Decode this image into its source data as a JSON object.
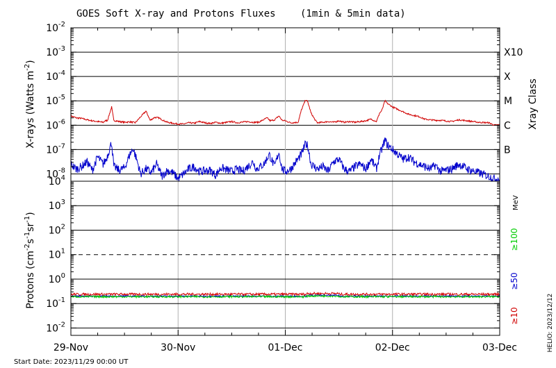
{
  "chart_data": {
    "type": "line",
    "title": "GOES Soft X-ray and Protons Fluxes",
    "subtitle": "(1min & 5min data)",
    "x_ticks": [
      "29-Nov",
      "30-Nov",
      "01-Dec",
      "02-Dec",
      "03-Dec"
    ],
    "x_range_days": [
      0,
      4
    ],
    "start_date_label": "Start Date: 2023/11/29 00:00 UT",
    "watermark": "HELIO: 2023/12/12",
    "xray": {
      "ylabel": "X-rays (Watts m⁻²)",
      "ylabel_parts": {
        "main": "X-rays (Watts m",
        "sup": "-2",
        "end": ")"
      },
      "log_range": [
        -8.3,
        -2
      ],
      "ticks": [
        {
          "exp": -2,
          "label": "-2"
        },
        {
          "exp": -3,
          "label": "-3"
        },
        {
          "exp": -4,
          "label": "-4"
        },
        {
          "exp": -5,
          "label": "-5"
        },
        {
          "exp": -6,
          "label": "-6"
        },
        {
          "exp": -7,
          "label": "-7"
        },
        {
          "exp": -8,
          "label": "-8"
        }
      ],
      "class_axis_label": "Xray Class",
      "classes": [
        {
          "label": "X10",
          "exp": -3
        },
        {
          "label": "X",
          "exp": -4
        },
        {
          "label": "M",
          "exp": -5
        },
        {
          "label": "C",
          "exp": -6
        },
        {
          "label": "B",
          "exp": -7
        }
      ],
      "series": [
        {
          "name": "long",
          "color": "#d00000",
          "log_values": [
            [
              0.0,
              -5.62
            ],
            [
              0.05,
              -5.7
            ],
            [
              0.1,
              -5.72
            ],
            [
              0.15,
              -5.78
            ],
            [
              0.2,
              -5.82
            ],
            [
              0.25,
              -5.85
            ],
            [
              0.3,
              -5.88
            ],
            [
              0.33,
              -5.8
            ],
            [
              0.34,
              -5.82
            ],
            [
              0.38,
              -5.25
            ],
            [
              0.4,
              -5.8
            ],
            [
              0.45,
              -5.85
            ],
            [
              0.5,
              -5.88
            ],
            [
              0.55,
              -5.86
            ],
            [
              0.6,
              -5.9
            ],
            [
              0.7,
              -5.42
            ],
            [
              0.74,
              -5.8
            ],
            [
              0.78,
              -5.68
            ],
            [
              0.82,
              -5.7
            ],
            [
              0.87,
              -5.82
            ],
            [
              0.9,
              -5.88
            ],
            [
              0.95,
              -5.92
            ],
            [
              1.0,
              -5.95
            ],
            [
              1.05,
              -5.95
            ],
            [
              1.1,
              -5.9
            ],
            [
              1.15,
              -5.92
            ],
            [
              1.2,
              -5.85
            ],
            [
              1.25,
              -5.9
            ],
            [
              1.3,
              -5.93
            ],
            [
              1.35,
              -5.88
            ],
            [
              1.4,
              -5.92
            ],
            [
              1.5,
              -5.85
            ],
            [
              1.55,
              -5.9
            ],
            [
              1.65,
              -5.85
            ],
            [
              1.7,
              -5.88
            ],
            [
              1.75,
              -5.88
            ],
            [
              1.83,
              -5.7
            ],
            [
              1.86,
              -5.82
            ],
            [
              1.9,
              -5.78
            ],
            [
              1.94,
              -5.62
            ],
            [
              1.97,
              -5.8
            ],
            [
              2.0,
              -5.82
            ],
            [
              2.05,
              -5.9
            ],
            [
              2.12,
              -5.88
            ],
            [
              2.15,
              -5.38
            ],
            [
              2.19,
              -4.95
            ],
            [
              2.21,
              -5.05
            ],
            [
              2.24,
              -5.5
            ],
            [
              2.28,
              -5.8
            ],
            [
              2.3,
              -5.9
            ],
            [
              2.35,
              -5.88
            ],
            [
              2.4,
              -5.85
            ],
            [
              2.45,
              -5.88
            ],
            [
              2.5,
              -5.82
            ],
            [
              2.55,
              -5.88
            ],
            [
              2.6,
              -5.85
            ],
            [
              2.65,
              -5.88
            ],
            [
              2.7,
              -5.85
            ],
            [
              2.75,
              -5.82
            ],
            [
              2.8,
              -5.75
            ],
            [
              2.85,
              -5.85
            ],
            [
              2.88,
              -5.5
            ],
            [
              2.9,
              -5.4
            ],
            [
              2.93,
              -5.0
            ],
            [
              2.95,
              -5.1
            ],
            [
              3.0,
              -5.25
            ],
            [
              3.05,
              -5.35
            ],
            [
              3.1,
              -5.45
            ],
            [
              3.15,
              -5.55
            ],
            [
              3.2,
              -5.6
            ],
            [
              3.25,
              -5.65
            ],
            [
              3.3,
              -5.75
            ],
            [
              3.35,
              -5.78
            ],
            [
              3.4,
              -5.8
            ],
            [
              3.45,
              -5.8
            ],
            [
              3.55,
              -5.85
            ],
            [
              3.62,
              -5.78
            ],
            [
              3.7,
              -5.82
            ],
            [
              3.8,
              -5.88
            ],
            [
              3.9,
              -5.9
            ],
            [
              3.95,
              -6.0
            ],
            [
              4.0,
              -5.98
            ]
          ]
        },
        {
          "name": "short",
          "color": "#0000cc",
          "log_values": [
            [
              0.0,
              -7.6
            ],
            [
              0.05,
              -7.8
            ],
            [
              0.1,
              -7.7
            ],
            [
              0.15,
              -7.5
            ],
            [
              0.2,
              -7.85
            ],
            [
              0.25,
              -7.3
            ],
            [
              0.3,
              -7.6
            ],
            [
              0.33,
              -7.4
            ],
            [
              0.38,
              -6.7
            ],
            [
              0.4,
              -7.7
            ],
            [
              0.45,
              -7.85
            ],
            [
              0.5,
              -7.75
            ],
            [
              0.55,
              -7.2
            ],
            [
              0.58,
              -6.95
            ],
            [
              0.62,
              -7.5
            ],
            [
              0.65,
              -8.0
            ],
            [
              0.7,
              -7.8
            ],
            [
              0.75,
              -7.95
            ],
            [
              0.8,
              -7.6
            ],
            [
              0.85,
              -8.1
            ],
            [
              0.9,
              -7.85
            ],
            [
              0.95,
              -7.95
            ],
            [
              1.0,
              -8.2
            ],
            [
              1.05,
              -8.0
            ],
            [
              1.1,
              -7.8
            ],
            [
              1.15,
              -7.7
            ],
            [
              1.2,
              -7.9
            ],
            [
              1.3,
              -7.85
            ],
            [
              1.35,
              -8.05
            ],
            [
              1.4,
              -7.75
            ],
            [
              1.5,
              -7.9
            ],
            [
              1.55,
              -7.8
            ],
            [
              1.6,
              -7.9
            ],
            [
              1.7,
              -7.5
            ],
            [
              1.73,
              -7.8
            ],
            [
              1.8,
              -7.6
            ],
            [
              1.85,
              -7.2
            ],
            [
              1.9,
              -7.7
            ],
            [
              1.94,
              -7.1
            ],
            [
              1.97,
              -7.8
            ],
            [
              2.0,
              -7.9
            ],
            [
              2.05,
              -7.8
            ],
            [
              2.1,
              -7.5
            ],
            [
              2.15,
              -7.2
            ],
            [
              2.19,
              -6.75
            ],
            [
              2.21,
              -6.85
            ],
            [
              2.24,
              -7.6
            ],
            [
              2.3,
              -7.8
            ],
            [
              2.35,
              -7.7
            ],
            [
              2.4,
              -7.9
            ],
            [
              2.45,
              -7.5
            ],
            [
              2.5,
              -7.4
            ],
            [
              2.55,
              -7.8
            ],
            [
              2.6,
              -7.9
            ],
            [
              2.65,
              -7.7
            ],
            [
              2.7,
              -7.6
            ],
            [
              2.75,
              -7.8
            ],
            [
              2.8,
              -7.4
            ],
            [
              2.85,
              -7.8
            ],
            [
              2.88,
              -7.2
            ],
            [
              2.9,
              -7.0
            ],
            [
              2.93,
              -6.6
            ],
            [
              2.95,
              -6.8
            ],
            [
              3.0,
              -7.0
            ],
            [
              3.05,
              -7.2
            ],
            [
              3.1,
              -7.4
            ],
            [
              3.15,
              -7.3
            ],
            [
              3.2,
              -7.5
            ],
            [
              3.25,
              -7.6
            ],
            [
              3.3,
              -7.7
            ],
            [
              3.35,
              -7.8
            ],
            [
              3.4,
              -7.65
            ],
            [
              3.45,
              -7.9
            ],
            [
              3.55,
              -7.8
            ],
            [
              3.62,
              -7.6
            ],
            [
              3.7,
              -7.8
            ],
            [
              3.8,
              -7.95
            ],
            [
              3.9,
              -8.1
            ],
            [
              3.95,
              -8.2
            ],
            [
              4.0,
              -8.2
            ]
          ]
        }
      ]
    },
    "protons": {
      "ylabel_parts": {
        "main": "Protons (cm",
        "sup1": "-2",
        "mid": "s",
        "sup2": "-1",
        "mid2": "sr",
        "sup3": "-1",
        "end": ")"
      },
      "log_range": [
        -2.3,
        4
      ],
      "ticks": [
        {
          "exp": 4,
          "label": "4"
        },
        {
          "exp": 3,
          "label": "3"
        },
        {
          "exp": 2,
          "label": "2"
        },
        {
          "exp": 1,
          "label": "1"
        },
        {
          "exp": 0,
          "label": "0"
        },
        {
          "exp": -1,
          "label": "-1"
        },
        {
          "exp": -2,
          "label": "-2"
        }
      ],
      "threshold_exp": 1,
      "energy_unit": "MeV",
      "energy_labels": [
        {
          "label": "≥100",
          "color": "#00cc00"
        },
        {
          "label": "≥50",
          "color": "#0000cc"
        },
        {
          "label": "≥10",
          "color": "#d00000"
        }
      ],
      "series": [
        {
          "name": "≥10",
          "color": "#d00000",
          "mean_log": -0.62,
          "noise": 0.05
        },
        {
          "name": "≥50",
          "color": "#0000cc",
          "mean_log": -0.7,
          "noise": 0.03
        },
        {
          "name": "≥100",
          "color": "#00cc00",
          "mean_log": -0.72,
          "noise": 0.04
        }
      ]
    }
  }
}
